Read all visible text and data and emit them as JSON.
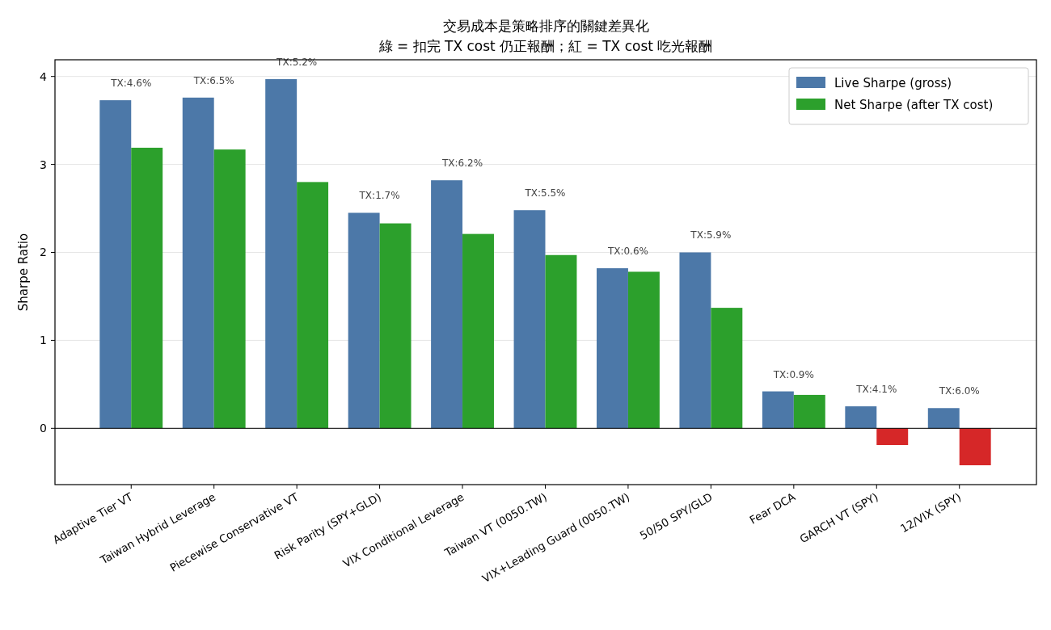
{
  "chart_data": {
    "type": "bar",
    "title": "交易成本是策略排序的關鍵差異化",
    "subtitle": "綠 = 扣完 TX cost 仍正報酬；紅 = TX cost 吃光報酬",
    "ylabel": "Sharpe Ratio",
    "categories": [
      "Adaptive Tier VT",
      "Taiwan Hybrid Leverage",
      "Piecewise Conservative VT",
      "Risk Parity (SPY+GLD)",
      "VIX Conditional Leverage",
      "Taiwan VT (0050.TW)",
      "VIX+Leading Guard (0050.TW)",
      "50/50 SPY/GLD",
      "Fear DCA",
      "GARCH VT (SPY)",
      "12/VIX (SPY)"
    ],
    "series": [
      {
        "name": "Live Sharpe (gross)",
        "color": "#4c78a8",
        "values": [
          3.73,
          3.76,
          3.97,
          2.45,
          2.82,
          2.48,
          1.82,
          2.0,
          0.42,
          0.25,
          0.23
        ]
      },
      {
        "name": "Net Sharpe (after TX cost)",
        "color": "#2ca02c",
        "colors": [
          "#2ca02c",
          "#2ca02c",
          "#2ca02c",
          "#2ca02c",
          "#2ca02c",
          "#2ca02c",
          "#2ca02c",
          "#2ca02c",
          "#2ca02c",
          "#d62728",
          "#d62728"
        ],
        "values": [
          3.19,
          3.17,
          2.8,
          2.33,
          2.21,
          1.97,
          1.78,
          1.37,
          0.38,
          -0.19,
          -0.42
        ]
      }
    ],
    "ylim": [
      -0.64,
      4.19
    ],
    "yticks": [
      0,
      1,
      2,
      3,
      4
    ],
    "grid": "y",
    "legend": "top right",
    "ref_lines": [
      {
        "axis": "y",
        "value": 0,
        "color": "#000000"
      }
    ],
    "annotations": [
      {
        "text": "TX:4.6%",
        "x": "Adaptive Tier VT",
        "y": 3.73
      },
      {
        "text": "TX:6.5%",
        "x": "Taiwan Hybrid Leverage",
        "y": 3.76
      },
      {
        "text": "TX:5.2%",
        "x": "Piecewise Conservative VT",
        "y": 3.97
      },
      {
        "text": "TX:1.7%",
        "x": "Risk Parity (SPY+GLD)",
        "y": 2.45
      },
      {
        "text": "TX:6.2%",
        "x": "VIX Conditional Leverage",
        "y": 2.82
      },
      {
        "text": "TX:5.5%",
        "x": "Taiwan VT (0050.TW)",
        "y": 2.48
      },
      {
        "text": "TX:0.6%",
        "x": "VIX+Leading Guard (0050.TW)",
        "y": 1.82
      },
      {
        "text": "TX:5.9%",
        "x": "50/50 SPY/GLD",
        "y": 2.0
      },
      {
        "text": "TX:0.9%",
        "x": "Fear DCA",
        "y": 0.42
      },
      {
        "text": "TX:4.1%",
        "x": "GARCH VT (SPY)",
        "y": 0.25
      },
      {
        "text": "TX:6.0%",
        "x": "12/VIX (SPY)",
        "y": 0.23
      }
    ]
  }
}
